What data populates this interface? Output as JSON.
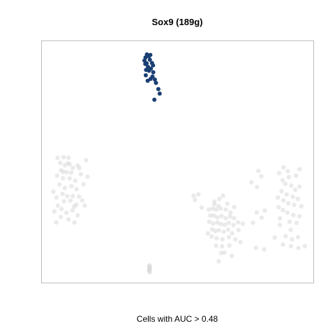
{
  "chart_data": {
    "type": "scatter",
    "title": "Sox9 (189g)",
    "xlabel": "Cells with AUC > 0.48",
    "ylabel": "",
    "xlim": [
      0,
      100
    ],
    "ylim": [
      0,
      100
    ],
    "grid": false,
    "legend": "none",
    "colors": {
      "highlight": "#1a3f73",
      "background": "#d8d8d8",
      "frame": "#bdbdbd"
    },
    "series": [
      {
        "role": "highlighted",
        "points": [
          [
            38.5,
            95.3
          ],
          [
            39.2,
            94.6
          ],
          [
            38.0,
            94.0
          ],
          [
            39.6,
            93.1
          ],
          [
            37.6,
            92.7
          ],
          [
            38.4,
            91.6
          ],
          [
            40.4,
            91.7
          ],
          [
            38.9,
            90.1
          ],
          [
            40.0,
            89.3
          ],
          [
            39.3,
            88.4
          ],
          [
            40.9,
            87.8
          ],
          [
            38.1,
            86.5
          ],
          [
            40.6,
            86.0
          ],
          [
            39.9,
            85.0
          ],
          [
            41.5,
            84.7
          ],
          [
            38.8,
            84.2
          ],
          [
            41.9,
            83.3
          ],
          [
            42.8,
            80.7
          ],
          [
            43.3,
            78.8
          ],
          [
            41.3,
            76.2
          ],
          [
            37.9,
            91.3
          ],
          [
            39.8,
            95.1
          ],
          [
            38.2,
            88.8
          ],
          [
            40.8,
            90.7
          ]
        ]
      },
      {
        "role": "background",
        "points": [
          [
            5.1,
            51.7
          ],
          [
            7.4,
            52.0
          ],
          [
            9.2,
            51.8
          ],
          [
            6.1,
            49.6
          ],
          [
            7.8,
            48.6
          ],
          [
            9.6,
            49.0
          ],
          [
            10.8,
            47.5
          ],
          [
            6.4,
            46.4
          ],
          [
            8.5,
            45.7
          ],
          [
            10.2,
            45.5
          ],
          [
            12.6,
            48.5
          ],
          [
            15.8,
            50.7
          ],
          [
            13.2,
            47.4
          ],
          [
            4.9,
            44.2
          ],
          [
            7.1,
            43.1
          ],
          [
            9.6,
            43.1
          ],
          [
            11.7,
            42.1
          ],
          [
            13.8,
            44.8
          ],
          [
            5.8,
            40.5
          ],
          [
            7.8,
            39.0
          ],
          [
            10.3,
            39.8
          ],
          [
            12.2,
            38.5
          ],
          [
            14.8,
            40.6
          ],
          [
            3.5,
            37.5
          ],
          [
            6.9,
            36.5
          ],
          [
            8.7,
            35.6
          ],
          [
            10.8,
            35.6
          ],
          [
            13.1,
            35.4
          ],
          [
            4.7,
            35.0
          ],
          [
            7.5,
            33.4
          ],
          [
            9.9,
            33.7
          ],
          [
            12.1,
            32.0
          ],
          [
            14.3,
            33.8
          ],
          [
            6.6,
            30.2
          ],
          [
            8.4,
            28.6
          ],
          [
            10.7,
            29.6
          ],
          [
            3.9,
            29.1
          ],
          [
            5.2,
            31.6
          ],
          [
            11.3,
            31.2
          ],
          [
            8.9,
            49.5
          ],
          [
            16.3,
            43.8
          ],
          [
            12.6,
            27.5
          ],
          [
            4.6,
            24.5
          ],
          [
            9.2,
            25.8
          ],
          [
            6.3,
            26.8
          ],
          [
            11.4,
            24.5
          ],
          [
            15.3,
            31.6
          ],
          [
            7.2,
            45.8
          ],
          [
            56.0,
            35.8
          ],
          [
            57.8,
            36.3
          ],
          [
            56.5,
            34.0
          ],
          [
            63.8,
            33.3
          ],
          [
            65.6,
            34.4
          ],
          [
            67.0,
            35.8
          ],
          [
            61.7,
            29.9
          ],
          [
            63.1,
            30.3
          ],
          [
            64.4,
            29.9
          ],
          [
            66.1,
            30.3
          ],
          [
            68.0,
            29.9
          ],
          [
            69.8,
            28.7
          ],
          [
            62.2,
            27.4
          ],
          [
            63.5,
            27.4
          ],
          [
            64.8,
            26.6
          ],
          [
            66.4,
            27.2
          ],
          [
            68.0,
            26.3
          ],
          [
            69.6,
            27.1
          ],
          [
            71.1,
            26.3
          ],
          [
            61.8,
            24.8
          ],
          [
            63.3,
            24.1
          ],
          [
            64.9,
            24.4
          ],
          [
            66.2,
            23.8
          ],
          [
            67.7,
            23.5
          ],
          [
            69.1,
            24.3
          ],
          [
            70.9,
            23.4
          ],
          [
            72.6,
            24.5
          ],
          [
            62.9,
            21.6
          ],
          [
            64.1,
            20.9
          ],
          [
            65.4,
            21.2
          ],
          [
            67.2,
            20.6
          ],
          [
            68.9,
            21.5
          ],
          [
            70.4,
            19.9
          ],
          [
            72.8,
            21.3
          ],
          [
            62.7,
            18.6
          ],
          [
            64.6,
            17.8
          ],
          [
            66.8,
            17.4
          ],
          [
            69.2,
            18.3
          ],
          [
            71.6,
            17.4
          ],
          [
            64.4,
            14.7
          ],
          [
            66.6,
            14.4
          ],
          [
            69.4,
            14.8
          ],
          [
            66.3,
            11.6
          ],
          [
            70.3,
            10.4
          ],
          [
            65.4,
            8.1
          ],
          [
            73.5,
            16.2
          ],
          [
            74.4,
            24.0
          ],
          [
            61.3,
            19.9
          ],
          [
            67.5,
            11.8
          ],
          [
            63.7,
            32.1
          ],
          [
            68.6,
            32.4
          ],
          [
            71.2,
            31.0
          ],
          [
            59.0,
            30.8
          ],
          [
            65.3,
            31.4
          ],
          [
            77.6,
            41.4
          ],
          [
            79.7,
            39.4
          ],
          [
            81.3,
            43.9
          ],
          [
            88.0,
            45.3
          ],
          [
            89.3,
            42.3
          ],
          [
            91.6,
            43.6
          ],
          [
            94.3,
            44.2
          ],
          [
            90.3,
            40.8
          ],
          [
            92.5,
            40.0
          ],
          [
            94.0,
            38.3
          ],
          [
            95.6,
            39.6
          ],
          [
            88.9,
            37.7
          ],
          [
            90.8,
            36.3
          ],
          [
            93.1,
            35.3
          ],
          [
            95.0,
            34.4
          ],
          [
            87.5,
            35.0
          ],
          [
            89.6,
            33.8
          ],
          [
            91.4,
            32.6
          ],
          [
            93.6,
            31.9
          ],
          [
            96.3,
            31.3
          ],
          [
            87.8,
            30.9
          ],
          [
            89.4,
            29.7
          ],
          [
            91.1,
            28.6
          ],
          [
            93.3,
            27.6
          ],
          [
            95.6,
            27.1
          ],
          [
            79.6,
            28.7
          ],
          [
            81.4,
            26.5
          ],
          [
            82.6,
            29.5
          ],
          [
            78.2,
            24.4
          ],
          [
            88.3,
            26.2
          ],
          [
            91.9,
            24.8
          ],
          [
            94.5,
            24.3
          ],
          [
            88.2,
            23.4
          ],
          [
            92.3,
            21.3
          ],
          [
            90.4,
            18.7
          ],
          [
            92.8,
            17.4
          ],
          [
            95.0,
            18.3
          ],
          [
            89.4,
            15.2
          ],
          [
            92.4,
            14.5
          ],
          [
            95.2,
            13.7
          ],
          [
            97.6,
            14.5
          ],
          [
            79.3,
            13.8
          ],
          [
            82.4,
            13.1
          ],
          [
            86.3,
            18.1
          ],
          [
            91.2,
            46.1
          ],
          [
            95.6,
            46.9
          ],
          [
            89.6,
            47.7
          ],
          [
            80.2,
            46.2
          ],
          [
            39.5,
            6.4
          ],
          [
            39.4,
            5.6
          ],
          [
            39.5,
            4.8
          ],
          [
            39.3,
            4.0
          ],
          [
            39.6,
            3.5
          ],
          [
            39.4,
            4.4
          ],
          [
            39.7,
            5.2
          ],
          [
            39.4,
            6.0
          ]
        ]
      }
    ]
  }
}
